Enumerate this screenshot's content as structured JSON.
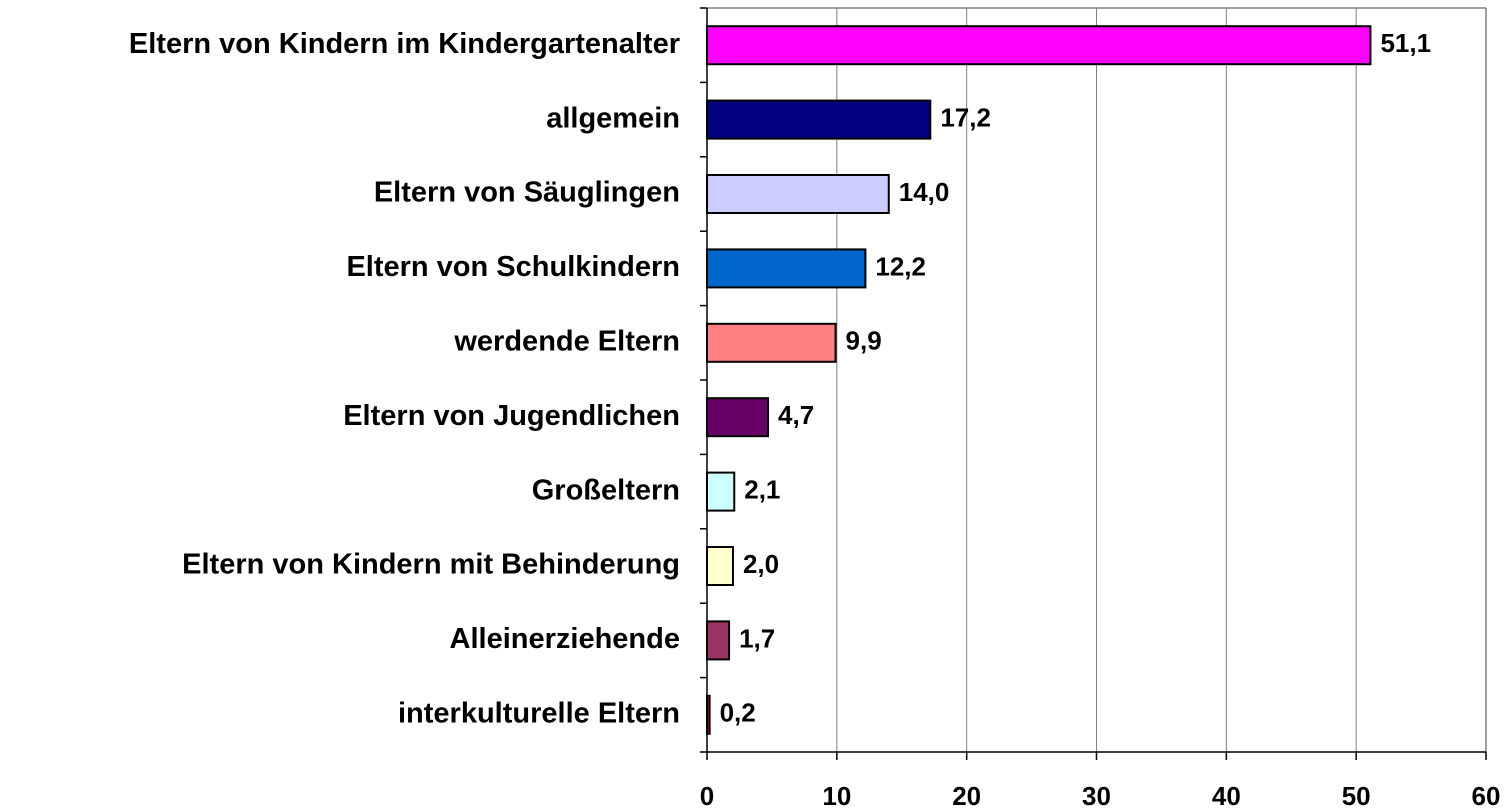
{
  "chart_data": {
    "type": "bar",
    "orientation": "horizontal",
    "categories": [
      "Eltern von Kindern im Kindergartenalter",
      "allgemein",
      "Eltern von Säuglingen",
      "Eltern von Schulkindern",
      "werdende Eltern",
      "Eltern von Jugendlichen",
      "Großeltern",
      "Eltern von Kindern mit Behinderung",
      "Alleinerziehende",
      "interkulturelle Eltern"
    ],
    "values": [
      51.1,
      17.2,
      14.0,
      12.2,
      9.9,
      4.7,
      2.1,
      2.0,
      1.7,
      0.2
    ],
    "value_labels": [
      "51,1",
      "17,2",
      "14,0",
      "12,2",
      "9,9",
      "4,7",
      "2,1",
      "2,0",
      "1,7",
      "0,2"
    ],
    "colors": [
      "#ff00ff",
      "#000080",
      "#ccccff",
      "#0066cc",
      "#ff8080",
      "#660066",
      "#ccffff",
      "#ffffcc",
      "#993366",
      "#ff0000"
    ],
    "xlim": [
      0,
      60
    ],
    "xticks": [
      0,
      10,
      20,
      30,
      40,
      50,
      60
    ],
    "grid": true
  }
}
